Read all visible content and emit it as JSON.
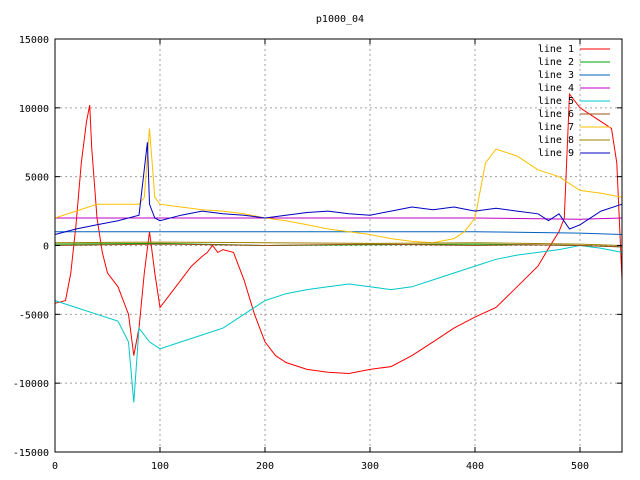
{
  "chart_data": {
    "type": "line",
    "title": "p1000_04",
    "xlabel": "",
    "ylabel": "",
    "xlim": [
      0,
      540
    ],
    "ylim": [
      -15000,
      15000
    ],
    "xticks": [
      0,
      100,
      200,
      300,
      400,
      500
    ],
    "yticks": [
      -15000,
      -10000,
      -5000,
      0,
      5000,
      10000,
      15000
    ],
    "grid": true,
    "legend_position": "top-right",
    "series": [
      {
        "name": "line 1",
        "color": "#ff0000",
        "x": [
          0,
          10,
          15,
          20,
          25,
          30,
          33,
          35,
          40,
          45,
          50,
          60,
          70,
          75,
          80,
          85,
          90,
          95,
          100,
          110,
          120,
          130,
          140,
          145,
          150,
          155,
          160,
          170,
          180,
          190,
          200,
          210,
          220,
          240,
          260,
          280,
          300,
          320,
          340,
          360,
          380,
          400,
          420,
          440,
          460,
          470,
          480,
          485,
          490,
          500,
          510,
          520,
          530,
          535,
          540
        ],
        "y": [
          -4200,
          -4000,
          -2000,
          1500,
          6000,
          9000,
          10200,
          7000,
          2000,
          -500,
          -2000,
          -3000,
          -5000,
          -8000,
          -6000,
          -2000,
          1000,
          -2000,
          -4500,
          -3500,
          -2500,
          -1500,
          -800,
          -500,
          0,
          -500,
          -300,
          -500,
          -2500,
          -5000,
          -7000,
          -8000,
          -8500,
          -9000,
          -9200,
          -9300,
          -9000,
          -8800,
          -8000,
          -7000,
          -6000,
          -5200,
          -4500,
          -3000,
          -1500,
          -200,
          1000,
          2000,
          11000,
          10000,
          9500,
          9000,
          8500,
          6000,
          -2500
        ]
      },
      {
        "name": "line 2",
        "color": "#00a000",
        "x": [
          0,
          100,
          200,
          300,
          400,
          500,
          540
        ],
        "y": [
          100,
          150,
          0,
          50,
          100,
          0,
          -100
        ]
      },
      {
        "name": "line 3",
        "color": "#0060c0",
        "x": [
          0,
          100,
          200,
          300,
          400,
          500,
          540
        ],
        "y": [
          1000,
          1000,
          1000,
          1000,
          1000,
          900,
          800
        ]
      },
      {
        "name": "line 4",
        "color": "#c000c0",
        "x": [
          0,
          100,
          200,
          300,
          400,
          500,
          540
        ],
        "y": [
          2000,
          2000,
          2000,
          2000,
          2000,
          1900,
          2000
        ]
      },
      {
        "name": "line 5",
        "color": "#00c8c8",
        "x": [
          0,
          20,
          40,
          60,
          70,
          75,
          80,
          90,
          100,
          120,
          140,
          160,
          180,
          200,
          220,
          240,
          260,
          280,
          300,
          320,
          340,
          360,
          380,
          400,
          420,
          440,
          460,
          480,
          500,
          520,
          540
        ],
        "y": [
          -4000,
          -4500,
          -5000,
          -5500,
          -7000,
          -11400,
          -6000,
          -7000,
          -7500,
          -7000,
          -6500,
          -6000,
          -5000,
          -4000,
          -3500,
          -3200,
          -3000,
          -2800,
          -3000,
          -3200,
          -3000,
          -2500,
          -2000,
          -1500,
          -1000,
          -700,
          -500,
          -300,
          0,
          -200,
          -500
        ]
      },
      {
        "name": "line 6",
        "color": "#a05020",
        "x": [
          0,
          50,
          100,
          150,
          200,
          250,
          300,
          350,
          400,
          450,
          500,
          540
        ],
        "y": [
          0,
          50,
          100,
          50,
          0,
          50,
          100,
          50,
          0,
          50,
          0,
          -100
        ]
      },
      {
        "name": "line 7",
        "color": "#ffc000",
        "x": [
          0,
          20,
          40,
          60,
          80,
          85,
          90,
          95,
          100,
          120,
          140,
          160,
          180,
          200,
          220,
          240,
          260,
          280,
          300,
          320,
          340,
          360,
          380,
          390,
          400,
          410,
          420,
          440,
          460,
          480,
          490,
          500,
          520,
          540
        ],
        "y": [
          2000,
          2500,
          3000,
          3000,
          3000,
          3500,
          8500,
          3500,
          3000,
          2800,
          2600,
          2500,
          2300,
          2000,
          1800,
          1500,
          1200,
          1000,
          800,
          500,
          300,
          200,
          500,
          1000,
          2000,
          6000,
          7000,
          6500,
          5500,
          5000,
          4500,
          4000,
          3800,
          3500
        ]
      },
      {
        "name": "line 8",
        "color": "#a08000",
        "x": [
          0,
          100,
          200,
          300,
          400,
          500,
          540
        ],
        "y": [
          200,
          250,
          200,
          150,
          200,
          100,
          0
        ]
      },
      {
        "name": "line 9",
        "color": "#0000c0",
        "x": [
          0,
          20,
          40,
          60,
          80,
          88,
          90,
          95,
          100,
          120,
          140,
          160,
          180,
          200,
          220,
          240,
          260,
          280,
          300,
          320,
          340,
          360,
          380,
          400,
          420,
          440,
          460,
          470,
          480,
          490,
          500,
          520,
          540
        ],
        "y": [
          800,
          1200,
          1500,
          1800,
          2200,
          7500,
          3000,
          2000,
          1800,
          2200,
          2500,
          2300,
          2200,
          2000,
          2200,
          2400,
          2500,
          2300,
          2200,
          2500,
          2800,
          2600,
          2800,
          2500,
          2700,
          2500,
          2300,
          1800,
          2300,
          1200,
          1500,
          2500,
          3000
        ]
      }
    ]
  }
}
